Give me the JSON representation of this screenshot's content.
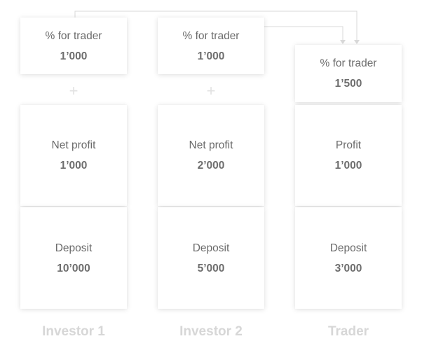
{
  "columns": [
    {
      "name": "Investor 1",
      "trader_share": {
        "label": "% for trader",
        "value": "1’000"
      },
      "profit": {
        "label": "Net profit",
        "value": "1’000"
      },
      "deposit": {
        "label": "Deposit",
        "value": "10’000"
      }
    },
    {
      "name": "Investor 2",
      "trader_share": {
        "label": "% for trader",
        "value": "1’000"
      },
      "profit": {
        "label": "Net profit",
        "value": "2’000"
      },
      "deposit": {
        "label": "Deposit",
        "value": "5’000"
      }
    },
    {
      "name": "Trader",
      "trader_share": {
        "label": "% for trader",
        "value": "1’500"
      },
      "profit": {
        "label": "Profit",
        "value": "1’000"
      },
      "deposit": {
        "label": "Deposit",
        "value": "3’000"
      }
    }
  ],
  "connector_symbol": "+",
  "colors": {
    "card_label": "#6b6b6b",
    "card_value": "#6e6e6e",
    "column_name": "#d7d7d7",
    "connector": "#d9d9d9"
  }
}
